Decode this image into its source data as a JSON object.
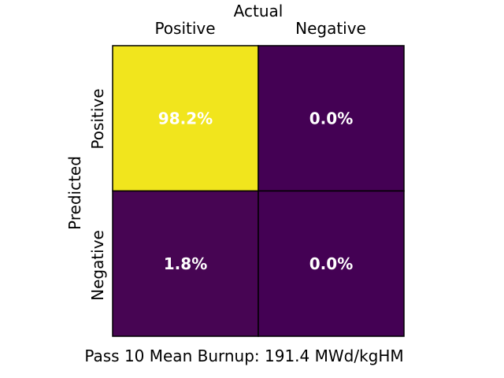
{
  "chart_data": {
    "type": "heatmap",
    "title": "Actual",
    "xlabel": "Actual",
    "ylabel": "Predicted",
    "caption": "Pass 10 Mean Burnup: 191.4 MWd/kgHM",
    "x_categories": [
      "Positive",
      "Negative"
    ],
    "y_categories": [
      "Positive",
      "Negative"
    ],
    "values": [
      [
        98.2,
        0.0
      ],
      [
        1.8,
        0.0
      ]
    ],
    "labels": [
      [
        "98.2%",
        "0.0%"
      ],
      [
        "1.8%",
        "0.0%"
      ]
    ],
    "colormap": "viridis",
    "colors": {
      "high": "#f1e51d",
      "low": "#440154",
      "cell_text": "#ffffff",
      "grid": "#000000"
    },
    "value_range": [
      0.0,
      98.2
    ]
  }
}
